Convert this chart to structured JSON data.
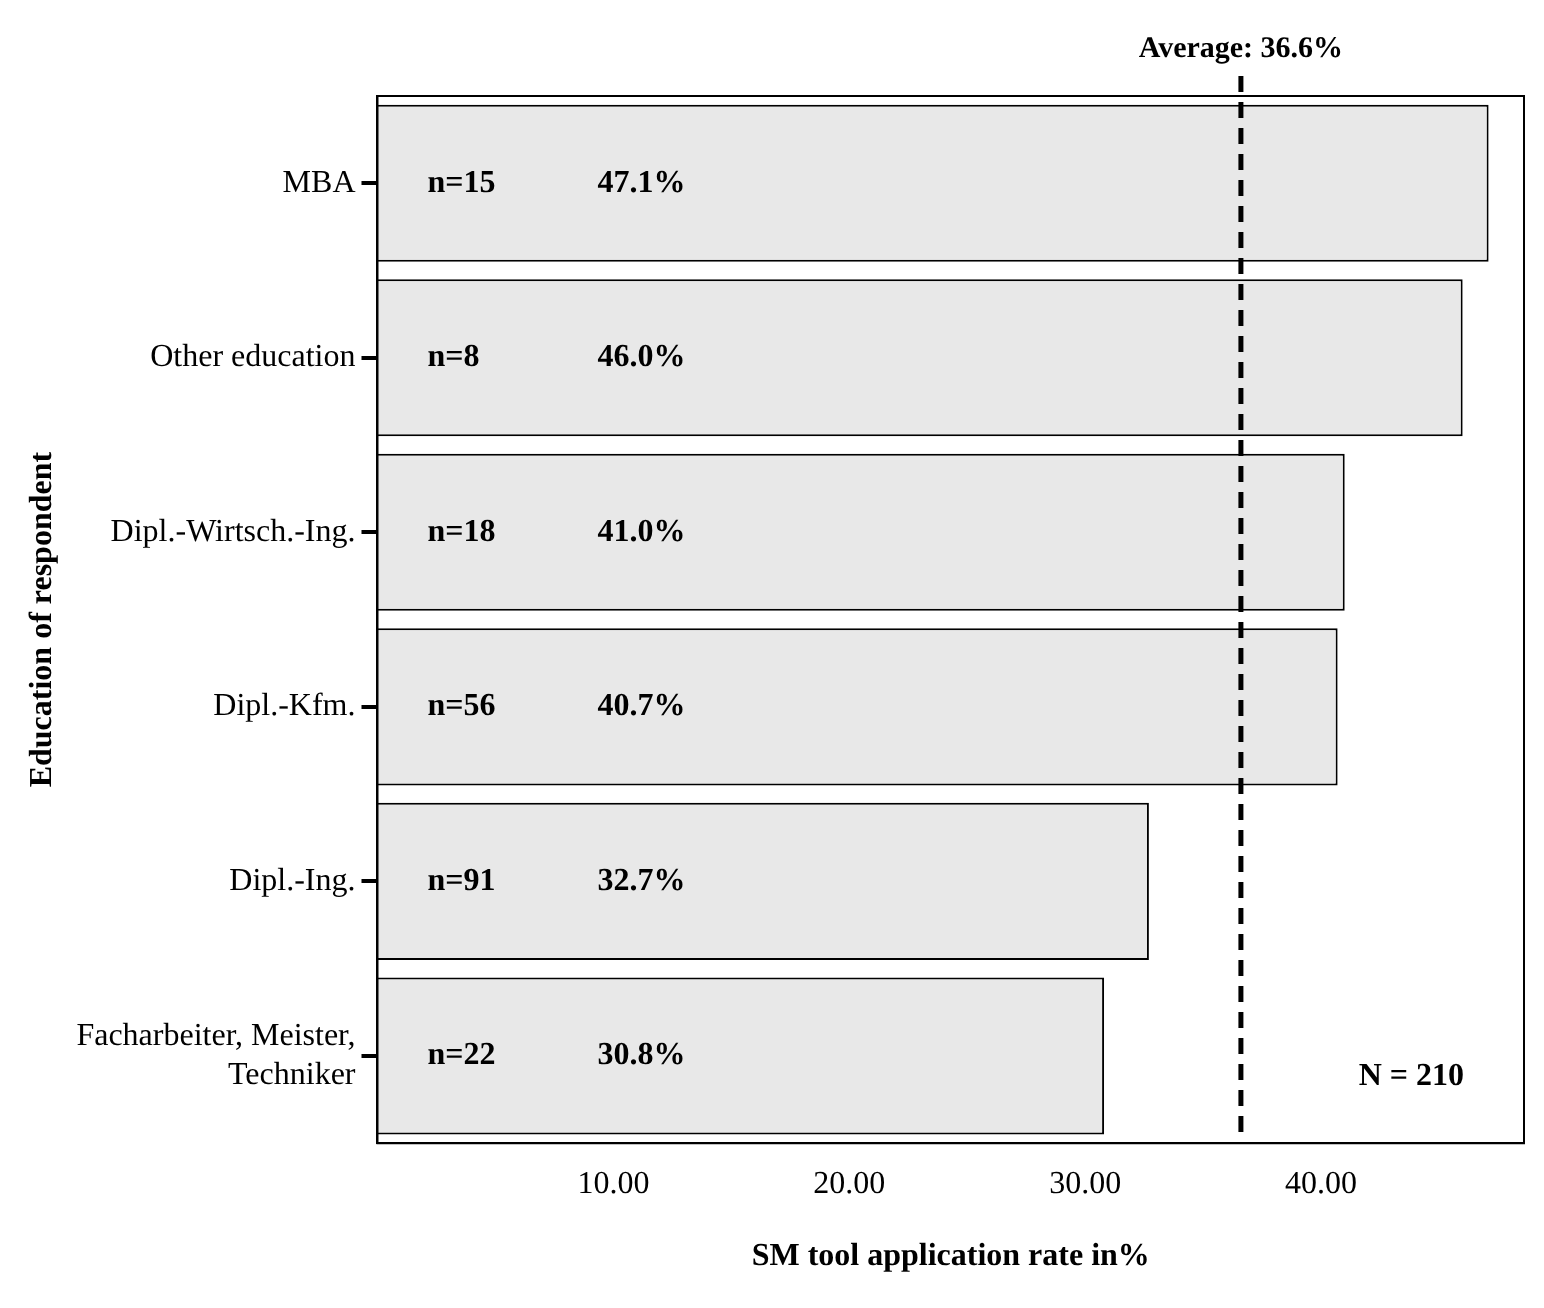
{
  "chart_data": {
    "type": "bar",
    "orientation": "horizontal",
    "xlabel": "SM tool application rate in%",
    "ylabel": "Education of respondent",
    "categories": [
      "MBA",
      "Other education",
      "Dipl.-Wirtsch.-Ing.",
      "Dipl.-Kfm.",
      "Dipl.-Ing.",
      "Facharbeiter, Meister, Techniker"
    ],
    "values": [
      47.1,
      46.0,
      41.0,
      40.7,
      32.7,
      30.8
    ],
    "value_labels": [
      "n=15  47.1%",
      "n=8  46.0%",
      "n=18  41.0%",
      "n=56  40.7%",
      "n=91  32.7%",
      "n=22  30.8%"
    ],
    "color": "#e8e8e8",
    "xlim": [
      0,
      48.6
    ],
    "xticks": [
      {
        "value": 10,
        "label": "10.00"
      },
      {
        "value": 20,
        "label": "20.00"
      },
      {
        "value": 30,
        "label": "30.00"
      },
      {
        "value": 40,
        "label": "40.00"
      }
    ],
    "ref_lines": [
      {
        "axis": "x",
        "value": 36.6,
        "label": "Average: 36.6%",
        "color": "#000000",
        "line_style": "dashed"
      }
    ],
    "annotations": [
      "N = 210"
    ],
    "grid": false,
    "legend": false
  }
}
